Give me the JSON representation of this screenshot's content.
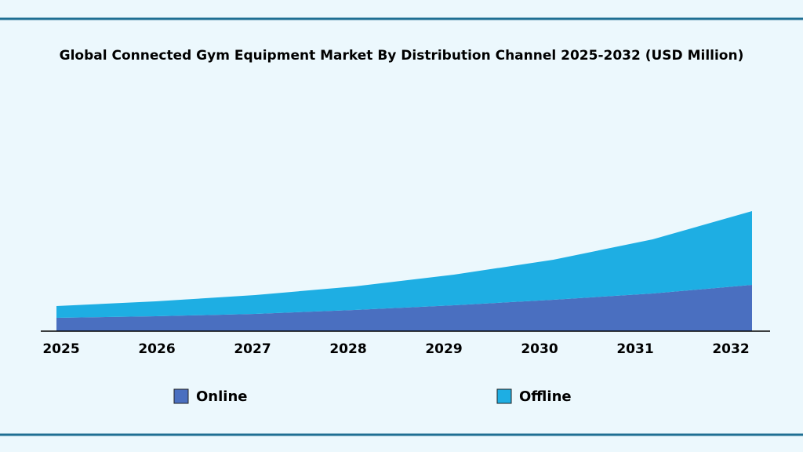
{
  "chart_data": {
    "type": "stacked-area",
    "title": "Global Connected Gym Equipment Market By Distribution Channel 2025-2032 (USD Million)",
    "categories": [
      "2025",
      "2026",
      "2027",
      "2028",
      "2029",
      "2030",
      "2031",
      "2032"
    ],
    "series": [
      {
        "name": "Online",
        "color": "#4a6fc0",
        "values": [
          17,
          19,
          22,
          27,
          33,
          40,
          48,
          59
        ]
      },
      {
        "name": "Offline",
        "color": "#1eaee3",
        "values": [
          15,
          19,
          24,
          30,
          39,
          51,
          69,
          94
        ]
      }
    ],
    "ylim": [
      0,
      160
    ]
  }
}
